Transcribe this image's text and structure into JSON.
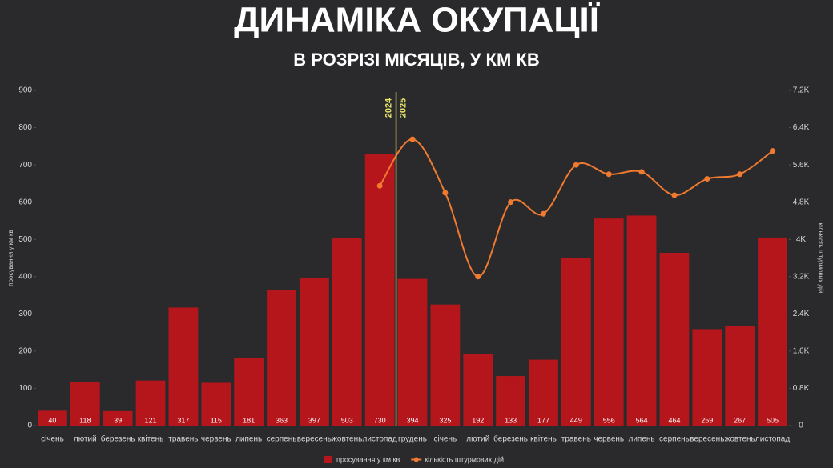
{
  "chart_data": {
    "type": "bar_line",
    "title": "ДИНАМІКА ОКУПАЦІЇ",
    "subtitle": "В РОЗРІЗІ МІСЯЦІВ, У КМ КВ",
    "y_label": "просування у км кв",
    "y2_label": "кількість штурмових дій",
    "divider_labels": [
      "2024",
      "2025"
    ],
    "categories": [
      "січень",
      "лютий",
      "березень",
      "квітень",
      "травень",
      "червень",
      "липень",
      "серпень",
      "вересень",
      "жовтень",
      "листопад",
      "грудень",
      "січень",
      "лютий",
      "березень",
      "квітень",
      "травень",
      "червень",
      "липень",
      "серпень",
      "вересень",
      "жовтень",
      "листопад"
    ],
    "series": [
      {
        "name": "просування у км кв",
        "type": "bar",
        "color": "#b5161c",
        "values": [
          40,
          118,
          39,
          121,
          317,
          115,
          181,
          363,
          397,
          503,
          730,
          394,
          325,
          192,
          133,
          177,
          449,
          556,
          564,
          464,
          259,
          267,
          505
        ]
      },
      {
        "name": "кількість штурмових дій",
        "type": "line",
        "axis": "y2",
        "color": "#f07a30",
        "values": [
          null,
          null,
          null,
          null,
          null,
          null,
          null,
          null,
          null,
          null,
          5150,
          6150,
          5000,
          3200,
          4800,
          4550,
          5600,
          5400,
          5450,
          4950,
          5300,
          5400,
          5900
        ]
      }
    ],
    "ylim": [
      0,
      900
    ],
    "yticks": [
      0,
      100,
      200,
      300,
      400,
      500,
      600,
      700,
      800,
      900
    ],
    "y2lim": [
      0,
      7200
    ],
    "y2ticks": [
      0,
      {
        "value": 800,
        "label": "0.8K"
      },
      {
        "value": 1600,
        "label": "1.6K"
      },
      {
        "value": 2400,
        "label": "2.4K"
      },
      {
        "value": 3200,
        "label": "3.2K"
      },
      {
        "value": 4000,
        "label": "4K"
      },
      {
        "value": 4800,
        "label": "4.8K"
      },
      {
        "value": 5600,
        "label": "5.6K"
      },
      {
        "value": 6400,
        "label": "6.4K"
      },
      {
        "value": 7200,
        "label": "7.2K"
      }
    ],
    "divider_after": 10
  }
}
